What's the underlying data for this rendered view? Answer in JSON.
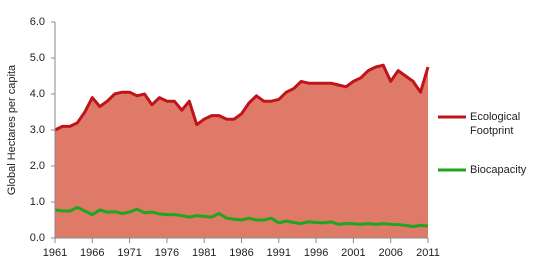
{
  "chart_data": {
    "type": "area",
    "y_label": "Global Hectares per capita",
    "x": [
      1961,
      1962,
      1963,
      1964,
      1965,
      1966,
      1967,
      1968,
      1969,
      1970,
      1971,
      1972,
      1973,
      1974,
      1975,
      1976,
      1977,
      1978,
      1979,
      1980,
      1981,
      1982,
      1983,
      1984,
      1985,
      1986,
      1987,
      1988,
      1989,
      1990,
      1991,
      1992,
      1993,
      1994,
      1995,
      1996,
      1997,
      1998,
      1999,
      2000,
      2001,
      2002,
      2003,
      2004,
      2005,
      2006,
      2007,
      2008,
      2009,
      2010,
      2011
    ],
    "series": [
      {
        "name": "Ecological Footprint",
        "color": "#c0141c",
        "fill": "#e07a68",
        "values": [
          3.0,
          3.1,
          3.1,
          3.2,
          3.5,
          3.9,
          3.65,
          3.8,
          4.0,
          4.05,
          4.05,
          3.95,
          4.0,
          3.7,
          3.9,
          3.8,
          3.8,
          3.55,
          3.8,
          3.15,
          3.3,
          3.4,
          3.4,
          3.3,
          3.3,
          3.45,
          3.75,
          3.95,
          3.8,
          3.8,
          3.85,
          4.05,
          4.15,
          4.35,
          4.3,
          4.3,
          4.3,
          4.3,
          4.25,
          4.2,
          4.35,
          4.45,
          4.65,
          4.75,
          4.8,
          4.35,
          4.65,
          4.5,
          4.35,
          4.05,
          4.75
        ]
      },
      {
        "name": "Biocapacity",
        "color": "#1fa51f",
        "values": [
          0.78,
          0.75,
          0.75,
          0.85,
          0.75,
          0.65,
          0.78,
          0.72,
          0.73,
          0.68,
          0.72,
          0.8,
          0.7,
          0.72,
          0.67,
          0.65,
          0.65,
          0.62,
          0.58,
          0.62,
          0.6,
          0.58,
          0.68,
          0.55,
          0.52,
          0.5,
          0.55,
          0.5,
          0.5,
          0.55,
          0.42,
          0.47,
          0.43,
          0.4,
          0.45,
          0.43,
          0.42,
          0.45,
          0.38,
          0.4,
          0.4,
          0.38,
          0.4,
          0.38,
          0.4,
          0.38,
          0.37,
          0.35,
          0.32,
          0.35,
          0.33
        ]
      }
    ],
    "xlim": [
      1961,
      2011
    ],
    "xticks": [
      1961,
      1966,
      1971,
      1976,
      1981,
      1986,
      1991,
      1996,
      2001,
      2006,
      2011
    ],
    "ylim": [
      0,
      6
    ],
    "yticks": [
      {
        "value": 0,
        "label": "0.0"
      },
      {
        "value": 1,
        "label": "1.0"
      },
      {
        "value": 2,
        "label": "2.0"
      },
      {
        "value": 3,
        "label": "3.0"
      },
      {
        "value": 4,
        "label": "4.0"
      },
      {
        "value": 5,
        "label": "5.0"
      },
      {
        "value": 6,
        "label": "6.0"
      }
    ],
    "grid": false,
    "legend": "right"
  }
}
